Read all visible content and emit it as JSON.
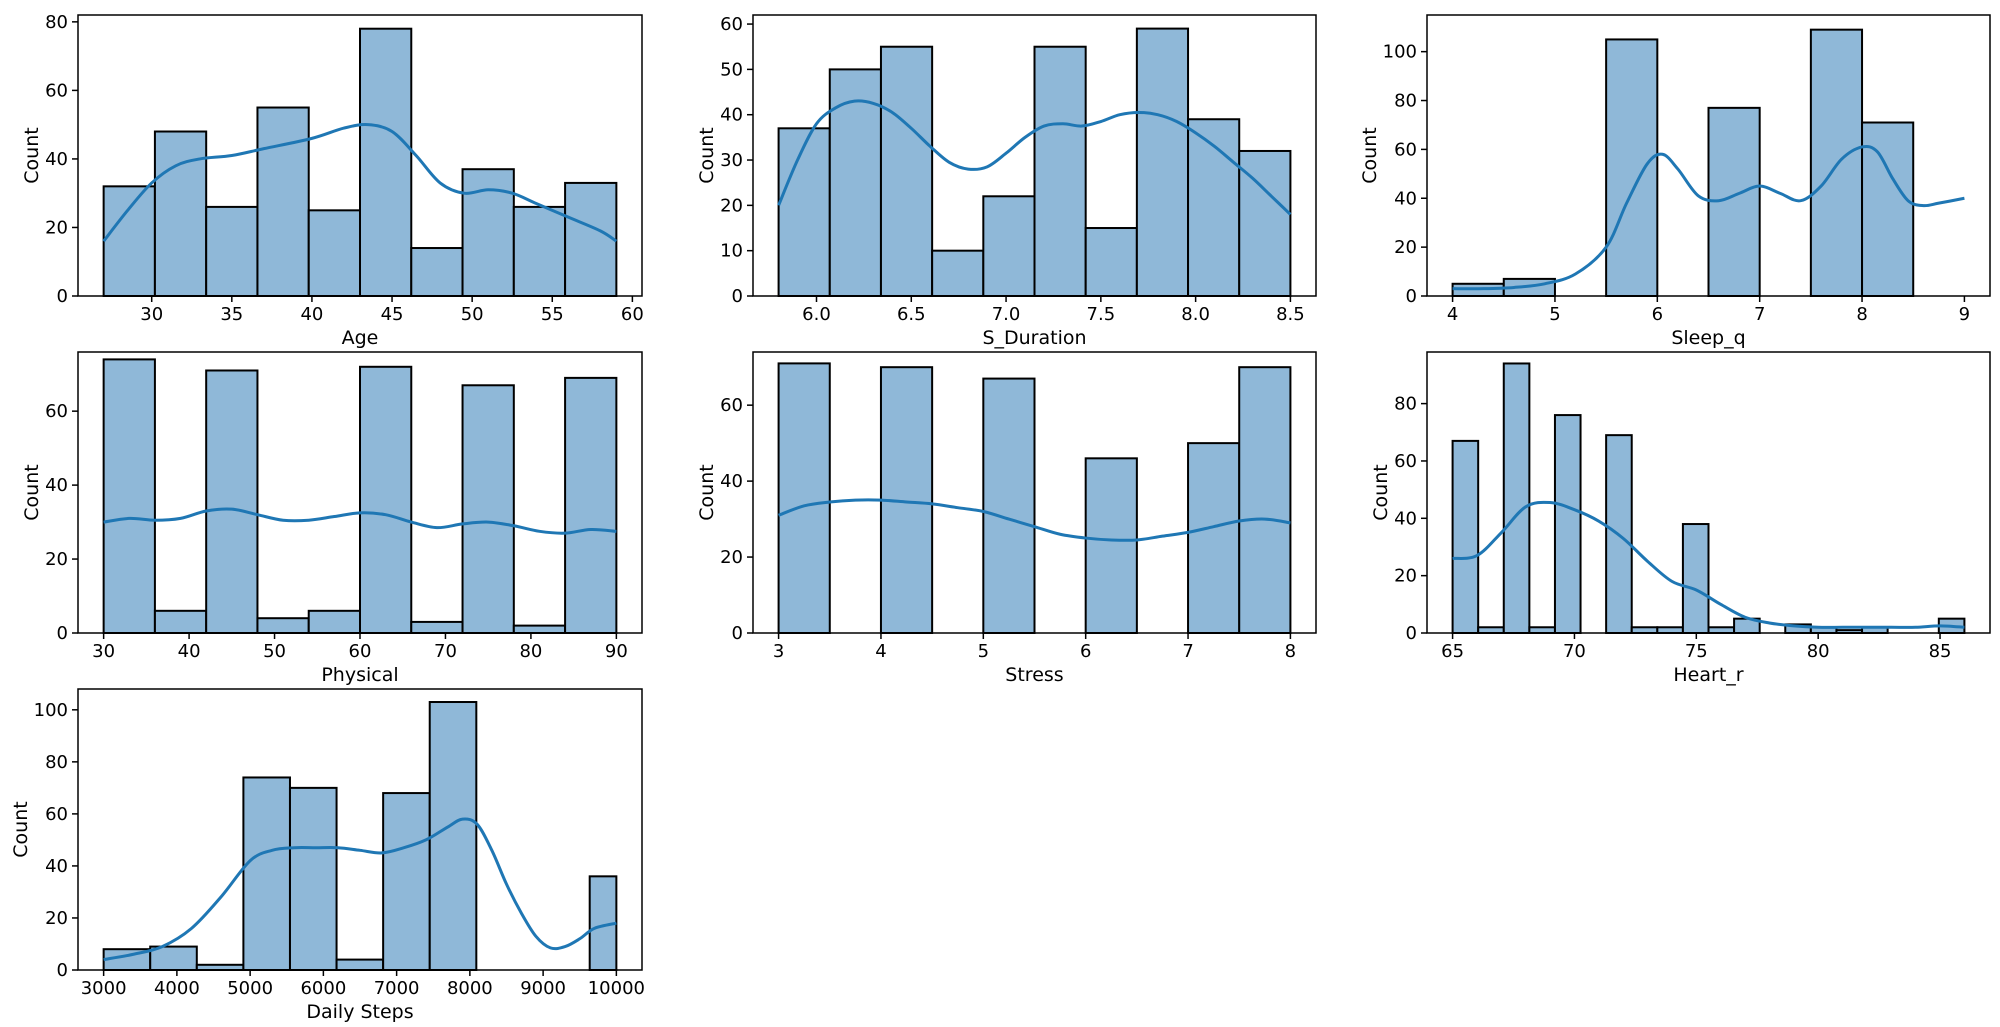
{
  "chart_data": [
    {
      "type": "bar",
      "subtype": "histogram-with-kde",
      "xlabel": "Age",
      "ylabel": "Count",
      "xlim": [
        25.4,
        60.6
      ],
      "ylim": [
        0,
        82
      ],
      "xticks": [
        30,
        35,
        40,
        45,
        50,
        55,
        60
      ],
      "yticks": [
        0,
        20,
        40,
        60,
        80
      ],
      "bin_edges": [
        27.0,
        30.2,
        33.4,
        36.6,
        39.8,
        43.0,
        46.2,
        49.4,
        52.6,
        55.8,
        59.0
      ],
      "values": [
        32,
        48,
        26,
        55,
        25,
        78,
        14,
        37,
        26,
        33
      ],
      "kde": {
        "x": [
          27,
          28.5,
          30,
          31.5,
          33,
          35,
          37,
          40,
          42,
          43.5,
          45,
          46.5,
          48,
          49.5,
          51,
          52.5,
          54,
          56,
          58,
          59
        ],
        "y": [
          16,
          25,
          33,
          38,
          40,
          41,
          43,
          46,
          49,
          50,
          48,
          41,
          33,
          30,
          31,
          30,
          27,
          23,
          19,
          16
        ]
      }
    },
    {
      "type": "bar",
      "subtype": "histogram-with-kde",
      "xlabel": "S_Duration",
      "ylabel": "Count",
      "xlim": [
        5.665,
        8.635
      ],
      "ylim": [
        0,
        62
      ],
      "xticks": [
        "6.0",
        "6.5",
        "7.0",
        "7.5",
        "8.0",
        "8.5"
      ],
      "yticks": [
        0,
        10,
        20,
        30,
        40,
        50,
        60
      ],
      "bin_edges": [
        5.8,
        6.07,
        6.34,
        6.61,
        6.88,
        7.15,
        7.42,
        7.69,
        7.96,
        8.23,
        8.5
      ],
      "values": [
        37,
        50,
        55,
        10,
        22,
        55,
        15,
        59,
        39,
        32
      ],
      "kde": {
        "x": [
          5.8,
          5.9,
          6.0,
          6.1,
          6.2,
          6.3,
          6.4,
          6.5,
          6.6,
          6.7,
          6.8,
          6.9,
          7.0,
          7.1,
          7.2,
          7.3,
          7.4,
          7.5,
          7.6,
          7.7,
          7.8,
          7.9,
          8.0,
          8.1,
          8.2,
          8.3,
          8.4,
          8.5
        ],
        "y": [
          20,
          30,
          38,
          41.5,
          43,
          42.5,
          40.5,
          37,
          33,
          29.5,
          28,
          28.5,
          31.5,
          35,
          37.5,
          38,
          37.5,
          38.5,
          40,
          40.5,
          40,
          38.5,
          36,
          33,
          29.5,
          26,
          22,
          18
        ]
      }
    },
    {
      "type": "bar",
      "subtype": "histogram-with-kde",
      "xlabel": "Sleep_q",
      "ylabel": "Count",
      "xlim": [
        3.75,
        9.25
      ],
      "ylim": [
        0,
        115
      ],
      "xticks": [
        4,
        5,
        6,
        7,
        8,
        9
      ],
      "yticks": [
        0,
        20,
        40,
        60,
        80,
        100
      ],
      "bin_edges": [
        4.0,
        4.5,
        5.0,
        5.5,
        6.0,
        6.5,
        7.0,
        7.5,
        8.0,
        8.5,
        9.0
      ],
      "values": [
        5,
        7,
        0,
        105,
        0,
        77,
        0,
        109,
        71,
        0
      ],
      "kde": {
        "x": [
          4,
          4.3,
          4.6,
          4.9,
          5.2,
          5.5,
          5.7,
          5.9,
          6.05,
          6.2,
          6.4,
          6.6,
          6.8,
          7.0,
          7.2,
          7.4,
          7.6,
          7.8,
          8.0,
          8.15,
          8.3,
          8.45,
          8.6,
          8.75,
          9.0
        ],
        "y": [
          3,
          3,
          3.5,
          5,
          9,
          20,
          38,
          54,
          58,
          52,
          41,
          39,
          42,
          45,
          42,
          39,
          45,
          56,
          61,
          59,
          48,
          39,
          37,
          38,
          40
        ]
      }
    },
    {
      "type": "bar",
      "subtype": "histogram-with-kde",
      "xlabel": "Physical",
      "ylabel": "Count",
      "xlim": [
        27,
        93
      ],
      "ylim": [
        0,
        76
      ],
      "xticks": [
        30,
        40,
        50,
        60,
        70,
        80,
        90
      ],
      "yticks": [
        0,
        20,
        40,
        60
      ],
      "bin_edges": [
        30,
        36,
        42,
        48,
        54,
        60,
        66,
        72,
        78,
        84,
        90
      ],
      "values": [
        74,
        6,
        71,
        4,
        6,
        72,
        3,
        67,
        2,
        69
      ],
      "kde": {
        "x": [
          30,
          33,
          36,
          39,
          42,
          45,
          48,
          51,
          54,
          57,
          60,
          63,
          66,
          69,
          72,
          75,
          78,
          81,
          84,
          87,
          90
        ],
        "y": [
          30,
          31,
          30.5,
          31,
          33,
          33.5,
          32,
          30.5,
          30.5,
          31.5,
          32.5,
          32,
          30,
          28.5,
          29.5,
          30,
          29,
          27.5,
          27,
          28,
          27.5
        ]
      }
    },
    {
      "type": "bar",
      "subtype": "histogram-with-kde",
      "xlabel": "Stress",
      "ylabel": "Count",
      "xlim": [
        2.75,
        8.25
      ],
      "ylim": [
        0,
        74
      ],
      "xticks": [
        3,
        4,
        5,
        6,
        7,
        8
      ],
      "yticks": [
        0,
        20,
        40,
        60
      ],
      "bin_edges": [
        3.0,
        3.5,
        4.0,
        4.5,
        5.0,
        5.5,
        6.0,
        6.5,
        7.0,
        7.5,
        8.0
      ],
      "values": [
        71,
        0,
        70,
        0,
        67,
        0,
        46,
        0,
        50,
        70
      ],
      "kde": {
        "x": [
          3,
          3.25,
          3.5,
          3.75,
          4,
          4.25,
          4.5,
          4.75,
          5,
          5.25,
          5.5,
          5.75,
          6,
          6.25,
          6.5,
          6.75,
          7,
          7.25,
          7.5,
          7.75,
          8
        ],
        "y": [
          31,
          33.5,
          34.5,
          35,
          35,
          34.5,
          34,
          33,
          32,
          30,
          28,
          26,
          25,
          24.5,
          24.5,
          25.5,
          26.5,
          28,
          29.5,
          30,
          29
        ]
      }
    },
    {
      "type": "bar",
      "subtype": "histogram-with-kde",
      "xlabel": "Heart_r",
      "ylabel": "Count",
      "xlim": [
        63.95,
        87.05
      ],
      "ylim": [
        0,
        98
      ],
      "xticks": [
        65,
        70,
        75,
        80,
        85
      ],
      "yticks": [
        0,
        20,
        40,
        60,
        80
      ],
      "bin_edges": [
        65.0,
        66.05,
        67.1,
        68.15,
        69.2,
        70.25,
        71.3,
        72.35,
        73.4,
        74.45,
        75.5,
        76.55,
        77.6,
        78.65,
        79.7,
        80.75,
        81.8,
        82.85,
        83.9,
        84.95,
        86.0
      ],
      "values": [
        67,
        2,
        94,
        2,
        76,
        0,
        69,
        2,
        2,
        38,
        2,
        5,
        0,
        3,
        2,
        1,
        2,
        0,
        0,
        5
      ],
      "kde": {
        "x": [
          65,
          66,
          67,
          68,
          69,
          70,
          71,
          72,
          73,
          74,
          75,
          76,
          77,
          78,
          79,
          80,
          81,
          82,
          83,
          84,
          85,
          86
        ],
        "y": [
          26,
          27,
          35,
          44,
          45.5,
          43,
          39,
          33,
          25,
          18,
          15,
          10,
          5.5,
          3.5,
          2.5,
          2,
          2,
          2,
          2,
          2,
          2.5,
          2
        ]
      }
    },
    {
      "type": "bar",
      "subtype": "histogram-with-kde",
      "xlabel": "Daily Steps",
      "ylabel": "Count",
      "xlim": [
        2650,
        10350
      ],
      "ylim": [
        0,
        108
      ],
      "xticks": [
        3000,
        4000,
        5000,
        6000,
        7000,
        8000,
        9000,
        10000
      ],
      "yticks": [
        0,
        20,
        40,
        60,
        80,
        100
      ],
      "bin_edges": [
        3000,
        3636,
        4272,
        4908,
        5544,
        6180,
        6816,
        7452,
        8088,
        9636,
        10000
      ],
      "values": [
        8,
        9,
        2,
        74,
        70,
        4,
        68,
        103,
        0,
        36
      ],
      "kde": {
        "x": [
          3000,
          3400,
          3800,
          4200,
          4600,
          5000,
          5300,
          5600,
          5900,
          6200,
          6500,
          6800,
          7100,
          7400,
          7700,
          7900,
          8100,
          8300,
          8500,
          8700,
          8900,
          9100,
          9300,
          9500,
          9700,
          10000
        ],
        "y": [
          4,
          6,
          9,
          16,
          28,
          42,
          46,
          47,
          47,
          47,
          46,
          45,
          47,
          50,
          55,
          58,
          56,
          46,
          33,
          22,
          13,
          8.5,
          9,
          12,
          16,
          18
        ]
      }
    }
  ]
}
